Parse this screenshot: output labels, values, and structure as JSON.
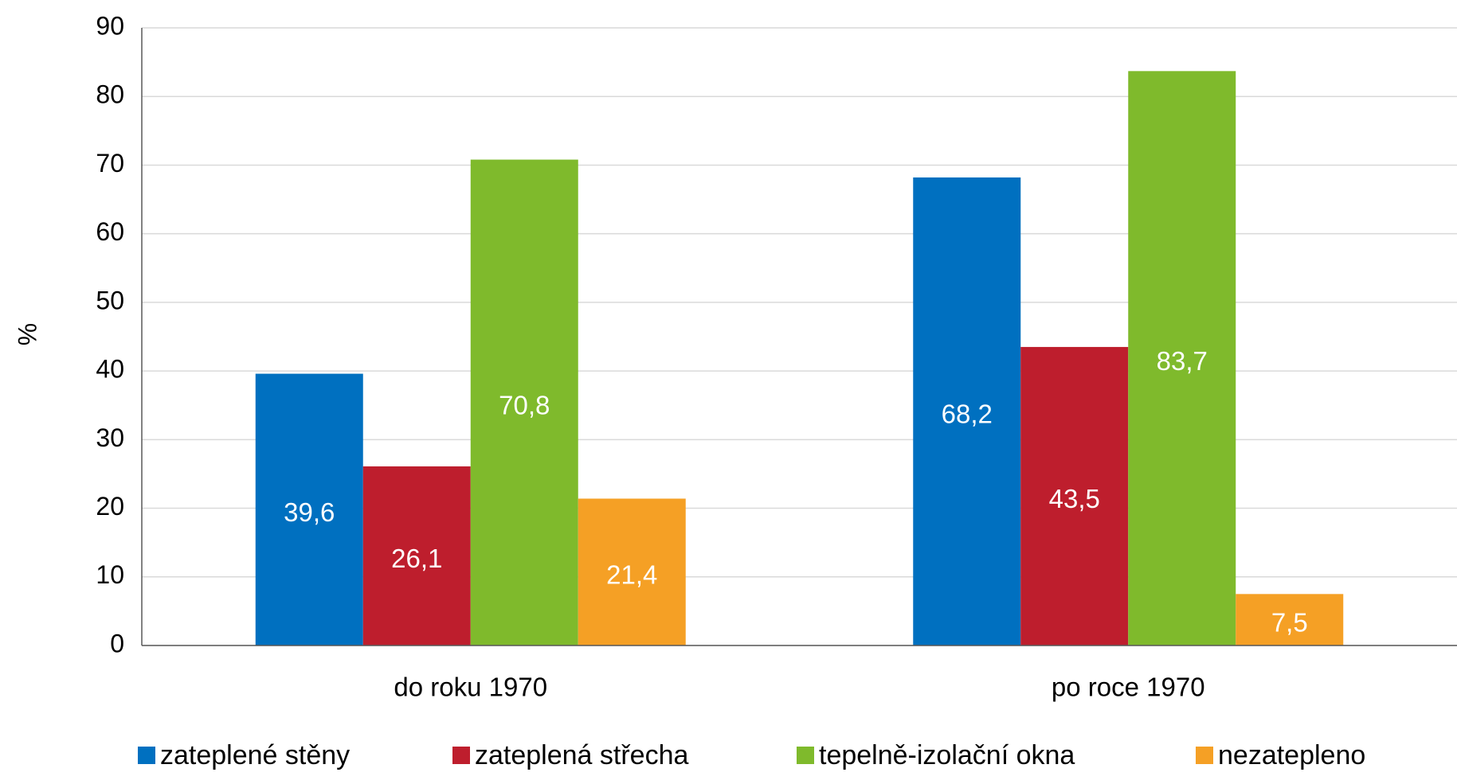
{
  "chart_data": {
    "type": "bar",
    "y_label": "%",
    "categories": [
      "do roku 1970",
      "po roce 1970"
    ],
    "series": [
      {
        "name": "zateplené stěny",
        "color": "#0070c0",
        "values": [
          39.6,
          68.2
        ],
        "value_labels": [
          "39,6",
          "68,2"
        ]
      },
      {
        "name": "zateplená střecha",
        "color": "#be1e2d",
        "values": [
          26.1,
          43.5
        ],
        "value_labels": [
          "26,1",
          "43,5"
        ]
      },
      {
        "name": "tepelně-izolační okna",
        "color": "#7fba2c",
        "values": [
          70.8,
          83.7
        ],
        "value_labels": [
          "70,8",
          "83,7"
        ]
      },
      {
        "name": "nezatepleno",
        "color": "#f5a025",
        "values": [
          21.4,
          7.5
        ],
        "value_labels": [
          "21,4",
          "7,5"
        ]
      }
    ],
    "ylim": [
      0,
      90
    ],
    "yticks": [
      0,
      10,
      20,
      30,
      40,
      50,
      60,
      70,
      80,
      90
    ],
    "grid": true,
    "legend": "bottom"
  }
}
